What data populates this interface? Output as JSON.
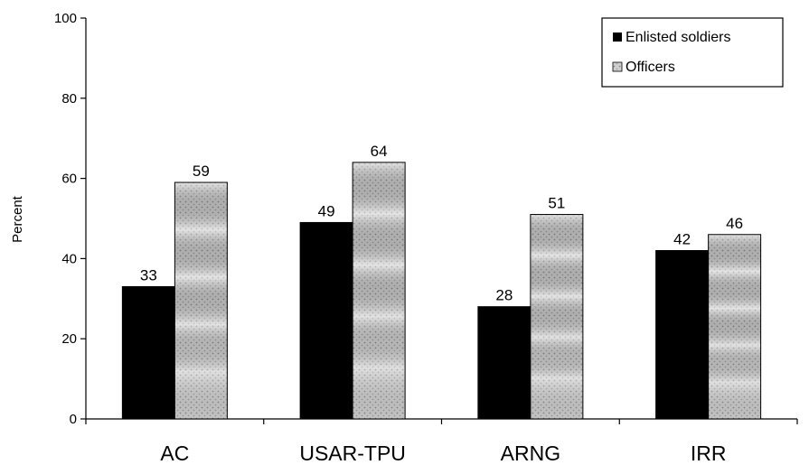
{
  "chart_data": {
    "type": "bar",
    "title": "",
    "xlabel": "",
    "ylabel": "Percent",
    "ylim": [
      0,
      100
    ],
    "yticks": [
      0,
      20,
      40,
      60,
      80,
      100
    ],
    "grid": false,
    "legend_position": "top-right",
    "categories": [
      "AC",
      "USAR-TPU",
      "ARNG",
      "IRR"
    ],
    "series": [
      {
        "name": "Enlisted soldiers",
        "values": [
          33,
          49,
          28,
          42
        ],
        "color": "#000000",
        "pattern": "solid"
      },
      {
        "name": "Officers",
        "values": [
          59,
          64,
          51,
          46
        ],
        "color": "#c8c8c8",
        "pattern": "dotted-wave"
      }
    ]
  }
}
